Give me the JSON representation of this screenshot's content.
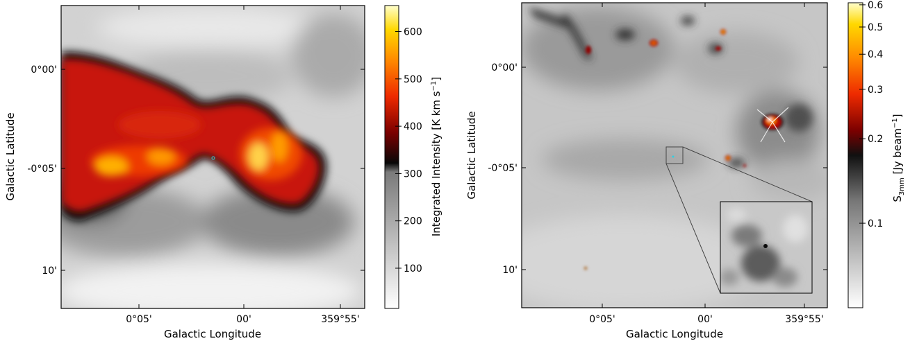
{
  "chart_data": [
    {
      "type": "heatmap",
      "xlabel": "Galactic Longitude",
      "ylabel": "Galactic Latitude",
      "x_ticks": [
        "0°05'",
        "00'",
        "359°55'"
      ],
      "y_ticks": [
        "0°00'",
        "-0°05'",
        "10'"
      ],
      "colorbar": {
        "label_main": "Integrated Intensity [K km s",
        "label_sup": "−1",
        "label_end": "]",
        "ticks": [
          100,
          200,
          300,
          400,
          500,
          600
        ],
        "range": [
          15,
          655
        ],
        "scale": "linear",
        "colormap": "gray-to-hot, split at 320"
      }
    },
    {
      "type": "heatmap",
      "xlabel": "Galactic Longitude",
      "ylabel": "Galactic Latitude",
      "x_ticks": [
        "0°05'",
        "00'",
        "359°55'"
      ],
      "y_ticks": [
        "0°00'",
        "-0°05'",
        "10'"
      ],
      "inset": "zoomed cutout of boxed region",
      "colorbar": {
        "label_main": "S",
        "label_sub": "3mm",
        "label_mid": " [Jy beam",
        "label_sup": "−1",
        "label_end": "]",
        "ticks": [
          0.1,
          0.2,
          0.3,
          0.4,
          0.5,
          0.6
        ],
        "range": [
          0.05,
          0.61
        ],
        "scale": "log",
        "colormap": "gray-to-hot"
      }
    }
  ],
  "colors": {
    "hot_red": "#e0200a",
    "hot_orange": "#ff8a00",
    "hot_yellow": "#fff27a",
    "marker_cyan": "#30d0e0"
  }
}
